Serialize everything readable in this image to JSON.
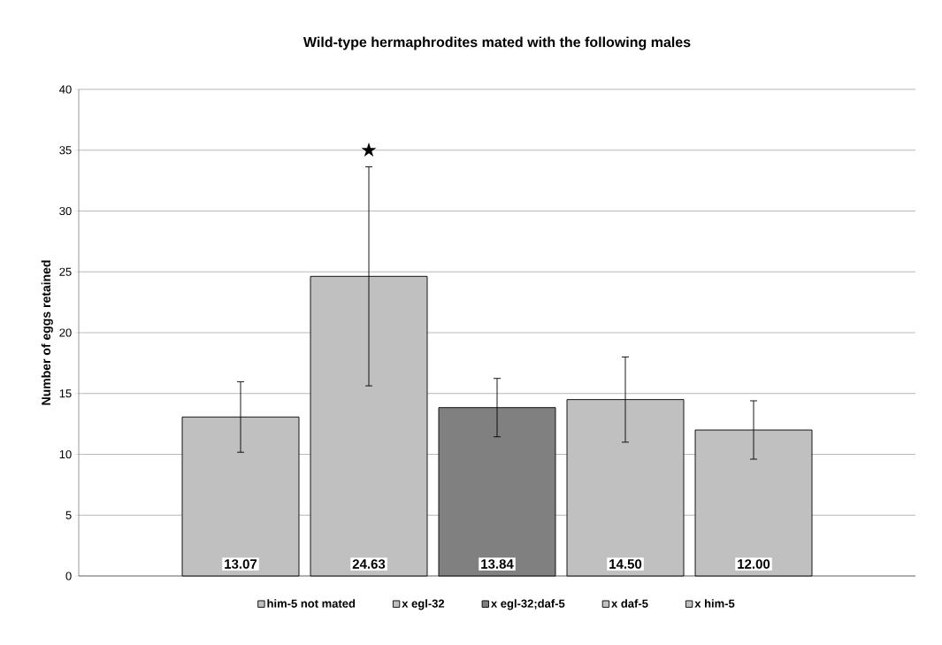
{
  "chart_data": {
    "type": "bar",
    "title": "Wild-type hermaphrodites mated with the following males",
    "ylabel": "Number of eggs retained",
    "categories": [
      null
    ],
    "series": [
      {
        "name": "him-5 not mated",
        "color": "#c0c0c0",
        "values": [
          13.07
        ],
        "errors": [
          2.9
        ],
        "value_labels": [
          "13.07"
        ]
      },
      {
        "name": "x egl-32",
        "color": "#c0c0c0",
        "values": [
          24.63
        ],
        "errors": [
          9.0
        ],
        "value_labels": [
          "24.63"
        ]
      },
      {
        "name": "x egl-32;daf-5",
        "color": "#808080",
        "values": [
          13.84
        ],
        "errors": [
          2.4
        ],
        "value_labels": [
          "13.84"
        ]
      },
      {
        "name": "x daf-5",
        "color": "#c0c0c0",
        "values": [
          14.5
        ],
        "errors": [
          3.5
        ],
        "value_labels": [
          "14.50"
        ]
      },
      {
        "name": "x him-5",
        "color": "#c0c0c0",
        "values": [
          12.0
        ],
        "errors": [
          2.4
        ],
        "value_labels": [
          "12.00"
        ]
      }
    ],
    "ylim": [
      0,
      40
    ],
    "yticks": [
      0,
      5,
      10,
      15,
      20,
      25,
      30,
      35,
      40
    ],
    "grid": "y",
    "legend": "bottom",
    "annotations": [
      "★"
    ]
  }
}
